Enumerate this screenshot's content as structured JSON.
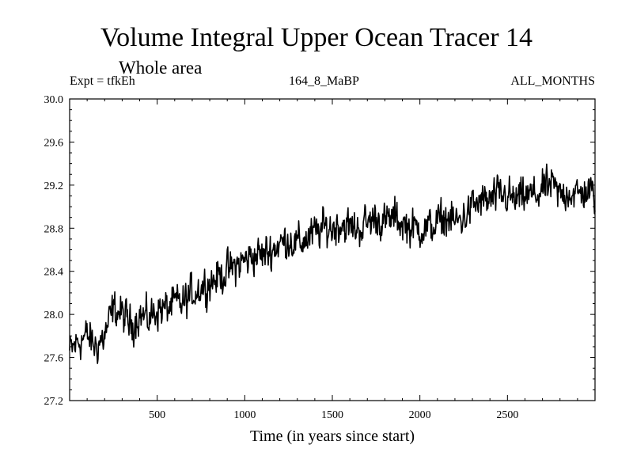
{
  "chart_data": {
    "type": "line",
    "title": "Volume Integral Upper Ocean Tracer 14",
    "subtitle": "Whole area",
    "annotations": {
      "experiment": "Expt = tfkEh",
      "run": "164_8_MaBP",
      "months": "ALL_MONTHS"
    },
    "xlabel": "Time (in years since start)",
    "ylabel": "",
    "xlim": [
      0,
      3000
    ],
    "ylim": [
      27.2,
      30.0
    ],
    "x_ticks": [
      "500",
      "1000",
      "1500",
      "2000",
      "2500"
    ],
    "y_ticks": [
      "27.2",
      "27.6",
      "28.0",
      "28.4",
      "28.8",
      "29.2",
      "29.6",
      "30.0"
    ],
    "grid": false,
    "legend": "none",
    "series": [
      {
        "x": [
          0,
          50,
          100,
          150,
          200,
          250,
          300,
          350,
          400,
          450,
          500,
          550,
          600,
          650,
          700,
          750,
          800,
          850,
          900,
          950,
          1000,
          1050,
          1100,
          1150,
          1200,
          1250,
          1300,
          1350,
          1400,
          1450,
          1500,
          1550,
          1600,
          1650,
          1700,
          1750,
          1800,
          1850,
          1900,
          1950,
          2000,
          2050,
          2100,
          2150,
          2200,
          2250,
          2300,
          2350,
          2400,
          2450,
          2500,
          2550,
          2600,
          2650,
          2700,
          2750,
          2800,
          2850,
          2900,
          2950,
          3000
        ],
        "y": [
          27.65,
          27.75,
          27.8,
          27.7,
          27.8,
          28.05,
          28.0,
          27.9,
          28.0,
          27.95,
          28.05,
          28.05,
          28.1,
          28.1,
          28.2,
          28.25,
          28.3,
          28.35,
          28.4,
          28.45,
          28.5,
          28.55,
          28.55,
          28.6,
          28.65,
          28.7,
          28.65,
          28.7,
          28.75,
          28.8,
          28.8,
          28.85,
          28.8,
          28.8,
          28.85,
          28.9,
          28.85,
          28.9,
          28.85,
          28.8,
          28.8,
          28.8,
          28.85,
          28.9,
          28.85,
          28.9,
          29.0,
          29.05,
          29.05,
          29.1,
          29.1,
          29.05,
          29.1,
          29.1,
          29.15,
          29.2,
          29.1,
          29.15,
          29.1,
          29.15,
          29.1
        ],
        "noise_amplitude": 0.28,
        "color": "#000000"
      }
    ]
  }
}
